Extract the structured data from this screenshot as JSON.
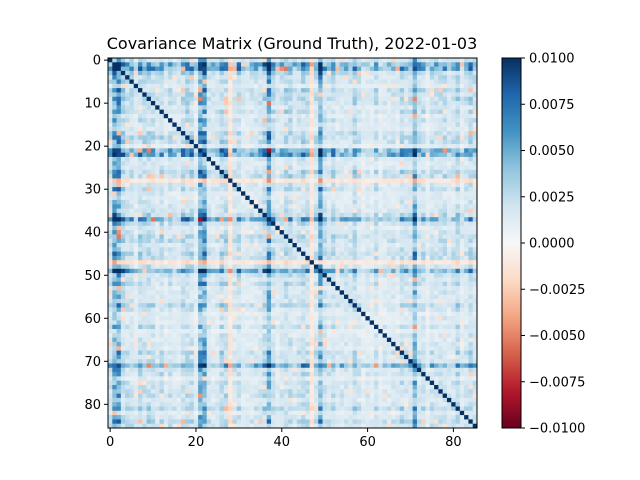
{
  "chart_data": {
    "type": "heatmap",
    "title": "Covariance Matrix (Ground Truth), 2022-01-03",
    "xlabel": "",
    "ylabel": "",
    "size": 86,
    "cmap": "RdBu",
    "vmin": -0.01,
    "vmax": 0.01,
    "x_ticks": [
      0,
      20,
      40,
      60,
      80
    ],
    "x_tick_labels": [
      "0",
      "20",
      "40",
      "60",
      "80"
    ],
    "y_ticks": [
      0,
      10,
      20,
      30,
      40,
      50,
      60,
      70,
      80
    ],
    "y_tick_labels": [
      "0",
      "10",
      "20",
      "30",
      "40",
      "50",
      "60",
      "70",
      "80"
    ],
    "colorbar_ticks": [
      0.01,
      0.0075,
      0.005,
      0.0025,
      0.0,
      -0.0025,
      -0.005,
      -0.0075,
      -0.01
    ],
    "colorbar_tick_labels": [
      "0.0100",
      "0.0075",
      "0.0050",
      "0.0025",
      "0.0000",
      "−0.0025",
      "−0.0050",
      "−0.0075",
      "−0.0100"
    ],
    "matrix_note": "symmetric; strong positive diagonal; strong positive bands near indices 1, 2, 21, 22, 37, 49, 71; weak negative bands near indices 28, 47",
    "band_rows": [
      1,
      2,
      21,
      22,
      37,
      49,
      71
    ],
    "negative_rows": [
      28,
      47
    ],
    "diagonal_value": 0.01,
    "base_value": 0.0018
  }
}
